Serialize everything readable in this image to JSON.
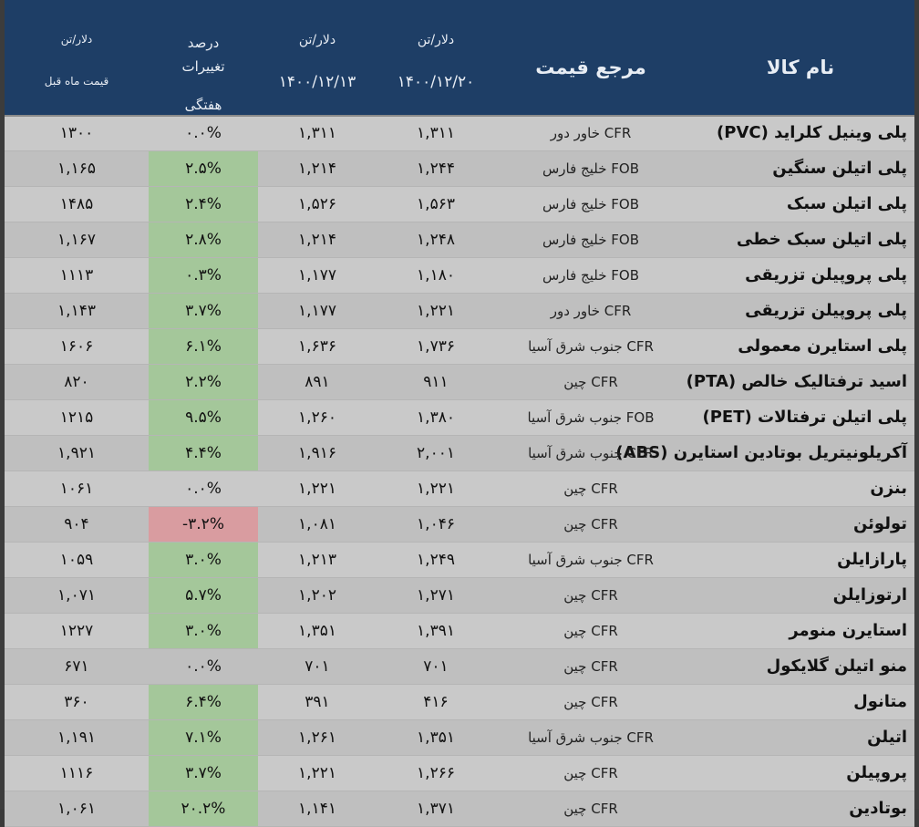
{
  "header": {
    "name": "نام کالا",
    "ref": "مرجع قیمت",
    "cur_unit": "دلار/تن",
    "cur_date": "۱۴۰۰/۱۲/۲۰",
    "prev_unit": "دلار/تن",
    "prev_date": "۱۴۰۰/۱۲/۱۳",
    "chg_line1": "درصد",
    "chg_line2": "تغییرات",
    "chg_line3": "هفتگی",
    "month_unit": "دلار/تن",
    "month_label": "قیمت ماه قبل"
  },
  "rows": [
    {
      "name": "پلی وینیل کلراید (PVC)",
      "ref": "CFR  خاور دور",
      "cur": "۱,۳۱۱",
      "prev": "۱,۳۱۱",
      "chg": "۰.۰%",
      "chg_sign": "zero",
      "month": "۱۳۰۰"
    },
    {
      "name": "پلی اتیلن سنگین",
      "ref": "FOB  خلیج فارس",
      "cur": "۱,۲۴۴",
      "prev": "۱,۲۱۴",
      "chg": "۲.۵%",
      "chg_sign": "pos",
      "month": "۱,۱۶۵"
    },
    {
      "name": "پلی اتیلن سبک",
      "ref": "FOB  خلیج فارس",
      "cur": "۱,۵۶۳",
      "prev": "۱,۵۲۶",
      "chg": "۲.۴%",
      "chg_sign": "pos",
      "month": "۱۴۸۵"
    },
    {
      "name": "پلی اتیلن سبک خطی",
      "ref": "FOB  خلیج فارس",
      "cur": "۱,۲۴۸",
      "prev": "۱,۲۱۴",
      "chg": "۲.۸%",
      "chg_sign": "pos",
      "month": "۱,۱۶۷"
    },
    {
      "name": "پلی پروپیلن تزریقی",
      "ref": "FOB  خلیج فارس",
      "cur": "۱,۱۸۰",
      "prev": "۱,۱۷۷",
      "chg": "۰.۳%",
      "chg_sign": "pos",
      "month": "۱۱۱۳"
    },
    {
      "name": "پلی پروپیلن تزریقی",
      "ref": "CFR  خاور دور",
      "cur": "۱,۲۲۱",
      "prev": "۱,۱۷۷",
      "chg": "۳.۷%",
      "chg_sign": "pos",
      "month": "۱,۱۴۳"
    },
    {
      "name": "پلی استایرن معمولی",
      "ref": "CFR جنوب شرق آسیا",
      "cur": "۱,۷۳۶",
      "prev": "۱,۶۳۶",
      "chg": "۶.۱%",
      "chg_sign": "pos",
      "month": "۱۶۰۶"
    },
    {
      "name": "اسید ترفتالیک خالص (PTA)",
      "ref": "CFR  چین",
      "cur": "۹۱۱",
      "prev": "۸۹۱",
      "chg": "۲.۲%",
      "chg_sign": "pos",
      "month": "۸۲۰"
    },
    {
      "name": "پلی اتیلن ترفتالات (PET)",
      "ref": "FOB جنوب شرق آسیا",
      "cur": "۱,۳۸۰",
      "prev": "۱,۲۶۰",
      "chg": "۹.۵%",
      "chg_sign": "pos",
      "month": "۱۲۱۵"
    },
    {
      "name": "آکریلونیتریل بوتادین استایرن (ABS)",
      "ref": "CFR جنوب شرق آسیا",
      "cur": "۲,۰۰۱",
      "prev": "۱,۹۱۶",
      "chg": "۴.۴%",
      "chg_sign": "pos",
      "month": "۱,۹۲۱"
    },
    {
      "name": "بنزن",
      "ref": "CFR  چین",
      "cur": "۱,۲۲۱",
      "prev": "۱,۲۲۱",
      "chg": "۰.۰%",
      "chg_sign": "zero",
      "month": "۱۰۶۱"
    },
    {
      "name": "تولوئن",
      "ref": "CFR  چین",
      "cur": "۱,۰۴۶",
      "prev": "۱,۰۸۱",
      "chg": "-۳.۲%",
      "chg_sign": "neg",
      "month": "۹۰۴"
    },
    {
      "name": "پارازایلن",
      "ref": "CFR جنوب شرق آسیا",
      "cur": "۱,۲۴۹",
      "prev": "۱,۲۱۳",
      "chg": "۳.۰%",
      "chg_sign": "pos",
      "month": "۱۰۵۹"
    },
    {
      "name": "ارتوزایلن",
      "ref": "CFR  چین",
      "cur": "۱,۲۷۱",
      "prev": "۱,۲۰۲",
      "chg": "۵.۷%",
      "chg_sign": "pos",
      "month": "۱,۰۷۱"
    },
    {
      "name": "استایرن منومر",
      "ref": "CFR  چین",
      "cur": "۱,۳۹۱",
      "prev": "۱,۳۵۱",
      "chg": "۳.۰%",
      "chg_sign": "pos",
      "month": "۱۲۲۷"
    },
    {
      "name": "منو اتیلن گلایکول",
      "ref": "CFR  چین",
      "cur": "۷۰۱",
      "prev": "۷۰۱",
      "chg": "۰.۰%",
      "chg_sign": "zero",
      "month": "۶۷۱"
    },
    {
      "name": "متانول",
      "ref": "CFR  چین",
      "cur": "۴۱۶",
      "prev": "۳۹۱",
      "chg": "۶.۴%",
      "chg_sign": "pos",
      "month": "۳۶۰"
    },
    {
      "name": "اتیلن",
      "ref": "CFR جنوب شرق آسیا",
      "cur": "۱,۳۵۱",
      "prev": "۱,۲۶۱",
      "chg": "۷.۱%",
      "chg_sign": "pos",
      "month": "۱,۱۹۱"
    },
    {
      "name": "پروپیلن",
      "ref": "CFR  چین",
      "cur": "۱,۲۶۶",
      "prev": "۱,۲۲۱",
      "chg": "۳.۷%",
      "chg_sign": "pos",
      "month": "۱۱۱۶"
    },
    {
      "name": "بوتادین",
      "ref": "CFR  چین",
      "cur": "۱,۳۷۱",
      "prev": "۱,۱۴۱",
      "chg": "۲۰.۲%",
      "chg_sign": "pos",
      "month": "۱,۰۶۱"
    }
  ]
}
